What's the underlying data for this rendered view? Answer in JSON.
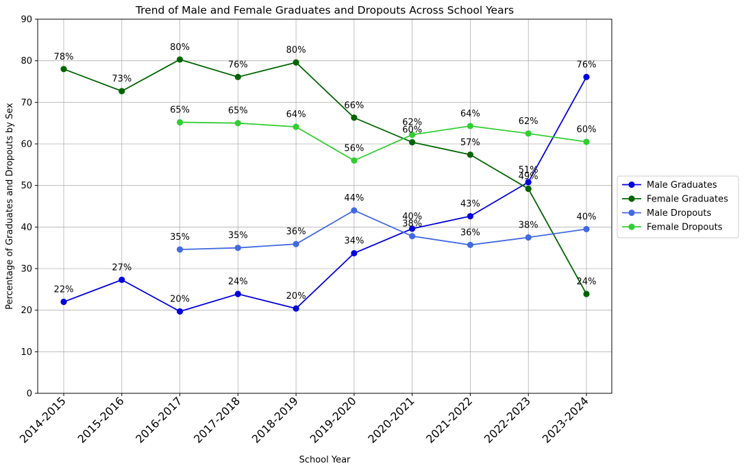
{
  "chart_data": {
    "type": "line",
    "title": "Trend of Male and Female Graduates and Dropouts Across School Years",
    "xlabel": "School Year",
    "ylabel": "Percentage of Graduates and Dropouts by Sex",
    "ylim": [
      0,
      90
    ],
    "yticks": [
      0,
      10,
      20,
      30,
      40,
      50,
      60,
      70,
      80,
      90
    ],
    "grid": true,
    "legend_position": "right",
    "categories": [
      "2014-2015",
      "2015-2016",
      "2016-2017",
      "2017-2018",
      "2018-2019",
      "2019-2020",
      "2020-2021",
      "2021-2022",
      "2022-2023",
      "2023-2024"
    ],
    "series": [
      {
        "name": "Male Graduates",
        "color": "#0000dd",
        "values": [
          22.0,
          27.3,
          19.7,
          23.9,
          20.4,
          33.7,
          39.6,
          42.6,
          50.8,
          76.1
        ],
        "labels": [
          "22%",
          "27%",
          "20%",
          "24%",
          "20%",
          "34%",
          "40%",
          "43%",
          "51%",
          "76%"
        ]
      },
      {
        "name": "Female Graduates",
        "color": "#006400",
        "values": [
          78.0,
          72.7,
          80.3,
          76.1,
          79.6,
          66.3,
          60.4,
          57.4,
          49.2,
          23.9
        ],
        "labels": [
          "78%",
          "73%",
          "80%",
          "76%",
          "80%",
          "66%",
          "60%",
          "57%",
          "49%",
          "24%"
        ]
      },
      {
        "name": "Male Dropouts",
        "color": "#4169e1",
        "values": [
          null,
          null,
          34.6,
          35.0,
          35.9,
          44.0,
          37.8,
          35.7,
          37.5,
          39.5
        ],
        "labels": [
          null,
          null,
          "35%",
          "35%",
          "36%",
          "44%",
          "38%",
          "36%",
          "38%",
          "40%"
        ]
      },
      {
        "name": "Female Dropouts",
        "color": "#32cd32",
        "values": [
          null,
          null,
          65.2,
          65.0,
          64.1,
          56.0,
          62.2,
          64.3,
          62.5,
          60.5
        ],
        "labels": [
          null,
          null,
          "65%",
          "65%",
          "64%",
          "56%",
          "62%",
          "64%",
          "62%",
          "60%"
        ]
      }
    ]
  }
}
